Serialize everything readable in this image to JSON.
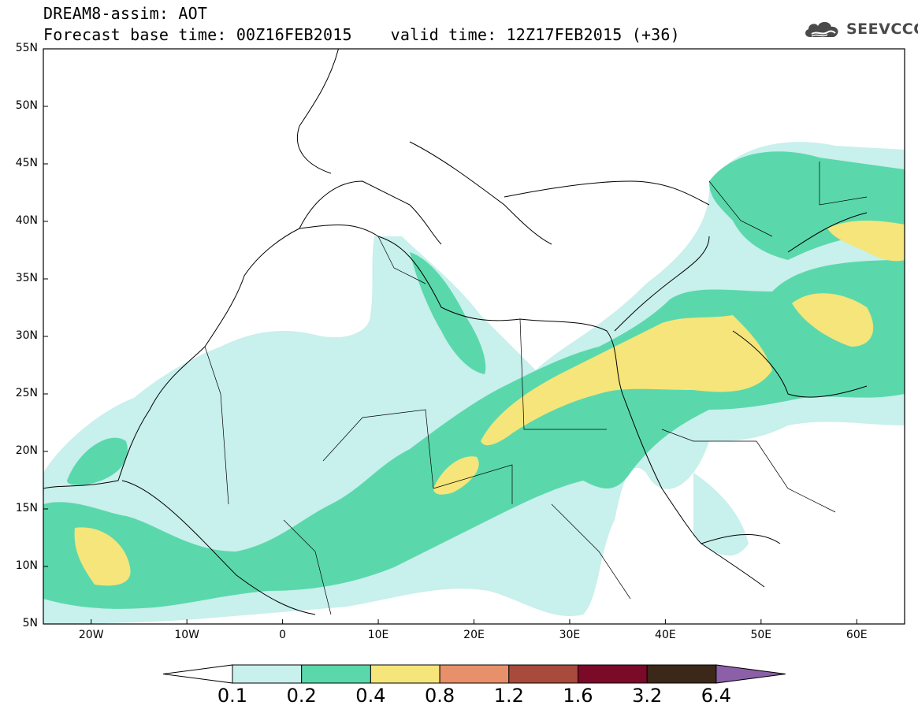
{
  "header": {
    "line1": "DREAM8-assim: AOT",
    "line2": "Forecast base time: 00Z16FEB2015    valid time: 12Z17FEB2015 (+36)"
  },
  "logo": {
    "icon": "cloud-icon",
    "text": "SEEVCCC",
    "color": "#4a4a4a"
  },
  "map": {
    "projection": "lat-lon",
    "lon_range": [
      -25,
      65
    ],
    "lat_range": [
      5,
      55
    ],
    "lat_ticks": [
      {
        "v": 55,
        "label": "55N"
      },
      {
        "v": 50,
        "label": "50N"
      },
      {
        "v": 45,
        "label": "45N"
      },
      {
        "v": 40,
        "label": "40N"
      },
      {
        "v": 35,
        "label": "35N"
      },
      {
        "v": 30,
        "label": "30N"
      },
      {
        "v": 25,
        "label": "25N"
      },
      {
        "v": 20,
        "label": "20N"
      },
      {
        "v": 15,
        "label": "15N"
      },
      {
        "v": 10,
        "label": "10N"
      },
      {
        "v": 5,
        "label": "5N"
      }
    ],
    "lon_ticks": [
      {
        "v": -20,
        "label": "20W"
      },
      {
        "v": -10,
        "label": "10W"
      },
      {
        "v": 0,
        "label": "0"
      },
      {
        "v": 10,
        "label": "10E"
      },
      {
        "v": 20,
        "label": "20E"
      },
      {
        "v": 30,
        "label": "30E"
      },
      {
        "v": 40,
        "label": "40E"
      },
      {
        "v": 50,
        "label": "50E"
      },
      {
        "v": 60,
        "label": "60E"
      }
    ]
  },
  "colorbar": {
    "labels": [
      "0.1",
      "0.2",
      "0.4",
      "0.8",
      "1.2",
      "1.6",
      "3.2",
      "6.4"
    ],
    "colors": [
      "#c8f0ec",
      "#5ad8ac",
      "#f5e57a",
      "#e8906a",
      "#a84a3c",
      "#7a0a28",
      "#3c2818"
    ],
    "under_color": "#ffffff",
    "over_color": "#8c60a8"
  }
}
